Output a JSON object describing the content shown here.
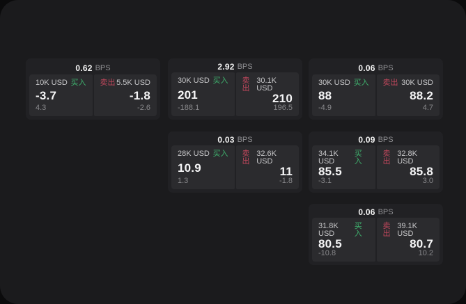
{
  "labels": {
    "bps_unit": "BPS",
    "buy_side": "买入",
    "sell_side": "卖出"
  },
  "colors": {
    "buy_green": "#3fb26e",
    "sell_red": "#c0475c",
    "panel_background": "#1b1b1d",
    "card_background": "#212124",
    "tile_background": "#2b2b2e"
  },
  "cards": [
    {
      "grid": {
        "row": 0,
        "col": 0
      },
      "bps_value": "0.62",
      "bps_unit": "BPS",
      "buy": {
        "amount": "10K USD",
        "side_label": "买入",
        "price": "-3.7",
        "delta": "4.3"
      },
      "sell": {
        "side_label": "卖出",
        "amount": "5.5K USD",
        "price": "-1.8",
        "delta": "-2.6"
      }
    },
    {
      "grid": {
        "row": 0,
        "col": 1
      },
      "bps_value": "2.92",
      "bps_unit": "BPS",
      "buy": {
        "amount": "30K USD",
        "side_label": "买入",
        "price": "201",
        "delta": "-188.1"
      },
      "sell": {
        "side_label": "卖出",
        "amount": "30.1K USD",
        "price": "210",
        "delta": "196.5"
      }
    },
    {
      "grid": {
        "row": 0,
        "col": 2
      },
      "bps_value": "0.06",
      "bps_unit": "BPS",
      "buy": {
        "amount": "30K USD",
        "side_label": "买入",
        "price": "88",
        "delta": "-4.9"
      },
      "sell": {
        "side_label": "卖出",
        "amount": "30K USD",
        "price": "88.2",
        "delta": "4.7"
      }
    },
    {
      "grid": {
        "row": 1,
        "col": 1
      },
      "bps_value": "0.03",
      "bps_unit": "BPS",
      "buy": {
        "amount": "28K USD",
        "side_label": "买入",
        "price": "10.9",
        "delta": "1.3"
      },
      "sell": {
        "side_label": "卖出",
        "amount": "32.6K USD",
        "price": "11",
        "delta": "-1.8"
      }
    },
    {
      "grid": {
        "row": 1,
        "col": 2
      },
      "bps_value": "0.09",
      "bps_unit": "BPS",
      "buy": {
        "amount": "34.1K USD",
        "side_label": "买入",
        "price": "85.5",
        "delta": "-3.1"
      },
      "sell": {
        "side_label": "卖出",
        "amount": "32.8K USD",
        "price": "85.8",
        "delta": "3.0"
      }
    },
    {
      "grid": {
        "row": 2,
        "col": 2
      },
      "bps_value": "0.06",
      "bps_unit": "BPS",
      "buy": {
        "amount": "31.8K USD",
        "side_label": "买入",
        "price": "80.5",
        "delta": "-10.8"
      },
      "sell": {
        "side_label": "卖出",
        "amount": "39.1K USD",
        "price": "80.7",
        "delta": "10.2"
      }
    }
  ]
}
